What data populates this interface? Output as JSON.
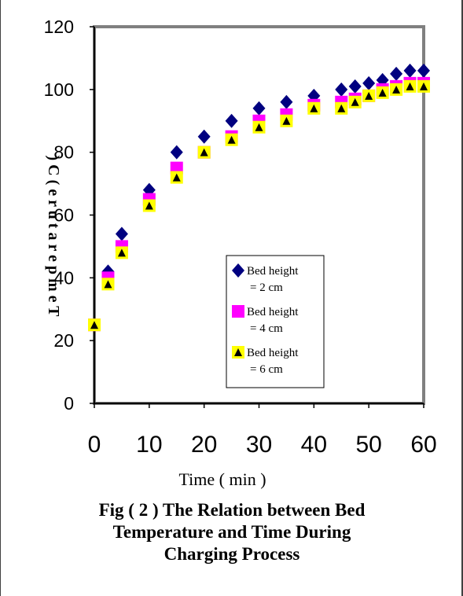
{
  "chart_data": {
    "type": "scatter",
    "title": "Fig ( 2 ) The Relation between Bed Temperature and Time During Charging Process",
    "caption_lines": [
      "Fig ( 2 ) The Relation between Bed",
      "Temperature and Time During",
      "Charging Process"
    ],
    "xlabel": "Time ( min )",
    "ylabel": ") C ( e r u t a r e p m e T",
    "xlim": [
      0,
      60
    ],
    "ylim": [
      0,
      120
    ],
    "x_ticks": [
      "0",
      "10",
      "20",
      "30",
      "40",
      "50",
      "60"
    ],
    "y_ticks": [
      "0",
      "20",
      "40",
      "60",
      "80",
      "100",
      "120"
    ],
    "x_ticks_values": [
      0,
      10,
      20,
      30,
      40,
      50,
      60
    ],
    "y_ticks_values": [
      0,
      20,
      40,
      60,
      80,
      100,
      120
    ],
    "grid": false,
    "legend_position": "lower-right inside plot",
    "x": [
      0,
      2.5,
      5,
      10,
      15,
      20,
      25,
      30,
      35,
      40,
      45,
      47.5,
      50,
      52.5,
      55,
      57.5,
      60
    ],
    "series": [
      {
        "name": "Bed height = 2 cm",
        "legend_lines": [
          "Bed height",
          "= 2 cm"
        ],
        "marker": "diamond",
        "color": "#000080",
        "values": [
          25,
          42,
          54,
          68,
          80,
          85,
          90,
          94,
          96,
          98,
          100,
          101,
          102,
          103,
          105,
          106,
          106
        ]
      },
      {
        "name": "Bed height = 4 cm",
        "legend_lines": [
          "Bed height",
          "= 4 cm"
        ],
        "marker": "square",
        "color": "#ff00ff",
        "values": [
          25,
          40,
          50,
          65,
          75,
          80,
          85,
          90,
          92,
          95,
          96,
          97,
          98,
          100,
          101,
          102,
          102
        ]
      },
      {
        "name": "Bed height = 6 cm",
        "legend_lines": [
          "Bed height",
          "= 6 cm"
        ],
        "marker": "triangle",
        "color": "#ffff00",
        "values": [
          25,
          38,
          48,
          63,
          72,
          80,
          84,
          88,
          90,
          94,
          94,
          96,
          98,
          99,
          100,
          101,
          101
        ]
      }
    ]
  }
}
